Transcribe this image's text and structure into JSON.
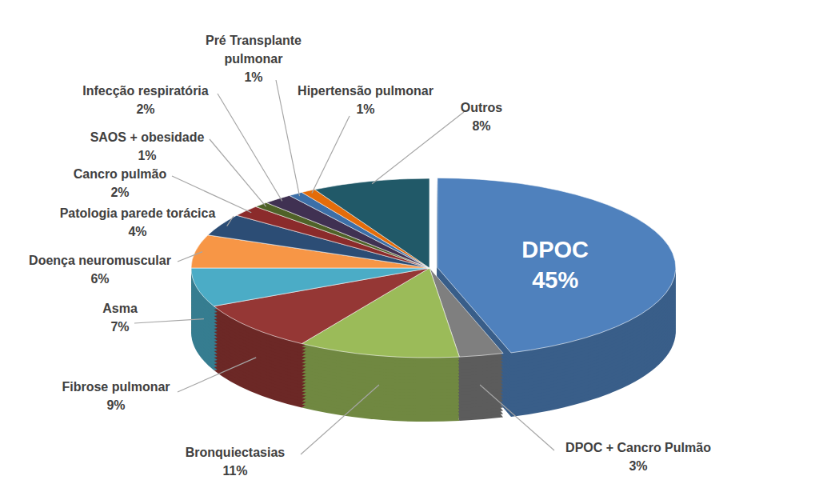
{
  "chart_data": {
    "type": "pie",
    "categories": [
      "DPOC",
      "DPOC + Cancro Pulmão",
      "Bronquiectasias",
      "Fibrose pulmonar",
      "Asma",
      "Doença neuromuscular",
      "Patologia parede torácica",
      "Cancro pulmão",
      "SAOS + obesidade",
      "Infecção respiratória",
      "Pré Transplante pulmonar",
      "Hipertensão pulmonar",
      "Outros"
    ],
    "values": [
      45,
      3,
      11,
      9,
      7,
      6,
      4,
      2,
      1,
      2,
      1,
      1,
      8
    ],
    "value_labels": [
      "45%",
      "3%",
      "11%",
      "9%",
      "7%",
      "6%",
      "4%",
      "2%",
      "1%",
      "2%",
      "1%",
      "1%",
      "8%"
    ],
    "colors": [
      "#4f81bd",
      "#7f7f7f",
      "#9bbb59",
      "#953735",
      "#4bacc6",
      "#f79646",
      "#2c4d75",
      "#8b2b2b",
      "#4f6228",
      "#403152",
      "#3c6fa8",
      "#e46c0a",
      "#215968"
    ],
    "data_labels": true
  }
}
